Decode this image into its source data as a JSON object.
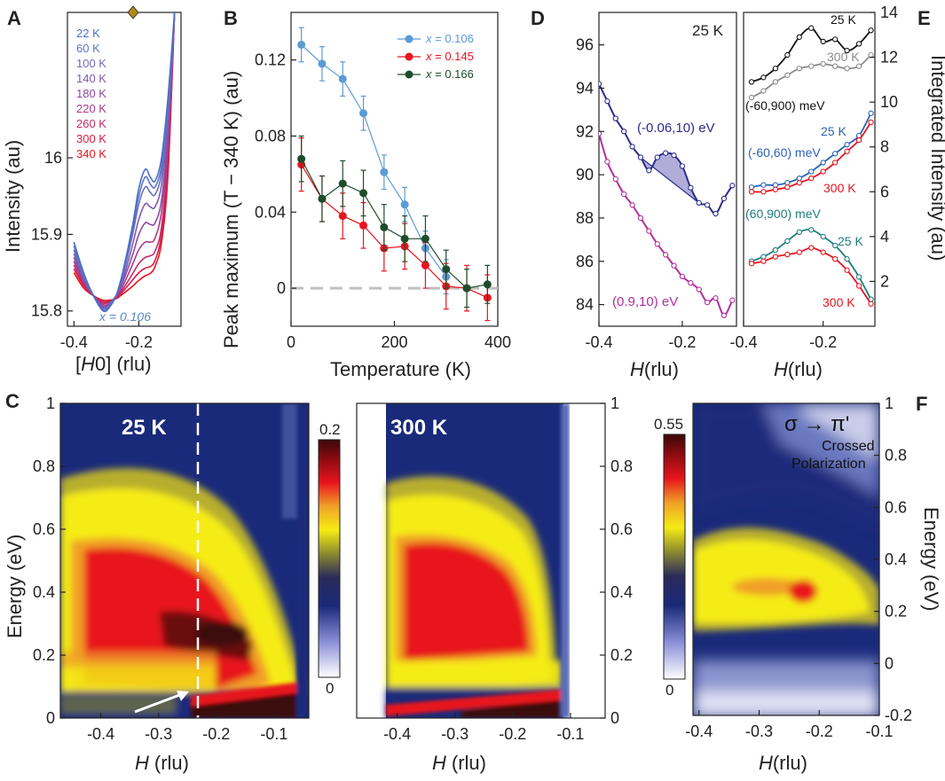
{
  "chart_data": [
    {
      "panel": "A",
      "type": "line",
      "xlabel": "[H0] (rlu)",
      "ylabel": "Intensity (au)",
      "xlim": [
        -0.42,
        -0.07
      ],
      "ylim": [
        15.78,
        16.19
      ],
      "xticks": [
        "-0.4",
        "-0.2"
      ],
      "yticks": [
        "15.8",
        "15.9",
        "16"
      ],
      "annotation": "x = 0.106",
      "series": [
        {
          "name": "22 K",
          "color": "#4a6fc8",
          "x": [
            -0.4,
            -0.37,
            -0.34,
            -0.31,
            -0.29,
            -0.27,
            -0.25,
            -0.22,
            -0.2,
            -0.18,
            -0.165,
            -0.15,
            -0.13,
            -0.11,
            -0.09
          ],
          "values": [
            15.89,
            15.85,
            15.82,
            15.8,
            15.805,
            15.82,
            15.85,
            15.91,
            15.96,
            15.985,
            15.975,
            15.97,
            16.0,
            16.08,
            16.19
          ]
        },
        {
          "name": "60 K",
          "color": "#5b74c4",
          "x": [
            -0.4,
            -0.37,
            -0.34,
            -0.31,
            -0.29,
            -0.27,
            -0.25,
            -0.22,
            -0.2,
            -0.18,
            -0.165,
            -0.15,
            -0.13,
            -0.11,
            -0.09
          ],
          "values": [
            15.885,
            15.847,
            15.82,
            15.8,
            15.806,
            15.82,
            15.848,
            15.905,
            15.95,
            15.975,
            15.966,
            15.962,
            15.99,
            16.07,
            16.19
          ]
        },
        {
          "name": "100 K",
          "color": "#6c6dbb",
          "x": [
            -0.4,
            -0.37,
            -0.34,
            -0.31,
            -0.29,
            -0.27,
            -0.25,
            -0.22,
            -0.2,
            -0.18,
            -0.165,
            -0.15,
            -0.13,
            -0.11,
            -0.09
          ],
          "values": [
            15.88,
            15.845,
            15.82,
            15.802,
            15.808,
            15.82,
            15.845,
            15.898,
            15.94,
            15.962,
            15.955,
            15.952,
            15.98,
            16.06,
            16.19
          ]
        },
        {
          "name": "140 K",
          "color": "#7d5ab0",
          "x": [
            -0.4,
            -0.37,
            -0.34,
            -0.31,
            -0.29,
            -0.27,
            -0.25,
            -0.22,
            -0.2,
            -0.18,
            -0.165,
            -0.15,
            -0.13,
            -0.11,
            -0.09
          ],
          "values": [
            15.875,
            15.843,
            15.82,
            15.804,
            15.81,
            15.82,
            15.84,
            15.885,
            15.92,
            15.94,
            15.936,
            15.936,
            15.965,
            16.05,
            16.19
          ]
        },
        {
          "name": "180 K",
          "color": "#8f4aa0",
          "x": [
            -0.4,
            -0.37,
            -0.34,
            -0.31,
            -0.29,
            -0.27,
            -0.25,
            -0.22,
            -0.2,
            -0.18,
            -0.165,
            -0.15,
            -0.13,
            -0.11,
            -0.09
          ],
          "values": [
            15.87,
            15.84,
            15.82,
            15.806,
            15.81,
            15.82,
            15.837,
            15.872,
            15.9,
            15.915,
            15.913,
            15.915,
            15.945,
            16.035,
            16.19
          ]
        },
        {
          "name": "220 K",
          "color": "#a63c8c",
          "x": [
            -0.4,
            -0.37,
            -0.34,
            -0.31,
            -0.29,
            -0.27,
            -0.25,
            -0.22,
            -0.2,
            -0.18,
            -0.165,
            -0.15,
            -0.13,
            -0.11,
            -0.09
          ],
          "values": [
            15.865,
            15.838,
            15.82,
            15.808,
            15.81,
            15.818,
            15.832,
            15.86,
            15.88,
            15.89,
            15.89,
            15.895,
            15.93,
            16.02,
            16.19
          ]
        },
        {
          "name": "260 K",
          "color": "#bf2c6c",
          "x": [
            -0.4,
            -0.37,
            -0.34,
            -0.31,
            -0.29,
            -0.27,
            -0.25,
            -0.22,
            -0.2,
            -0.18,
            -0.165,
            -0.15,
            -0.13,
            -0.11,
            -0.09
          ],
          "values": [
            15.86,
            15.835,
            15.82,
            15.81,
            15.812,
            15.818,
            15.828,
            15.848,
            15.862,
            15.87,
            15.872,
            15.878,
            15.91,
            16.005,
            16.19
          ]
        },
        {
          "name": "300 K",
          "color": "#d81c48",
          "x": [
            -0.4,
            -0.37,
            -0.34,
            -0.31,
            -0.29,
            -0.27,
            -0.25,
            -0.22,
            -0.2,
            -0.18,
            -0.165,
            -0.15,
            -0.13,
            -0.11,
            -0.09
          ],
          "values": [
            15.855,
            15.833,
            15.82,
            15.812,
            15.813,
            15.817,
            15.825,
            15.84,
            15.85,
            15.856,
            15.858,
            15.866,
            15.9,
            15.99,
            16.19
          ]
        },
        {
          "name": "340 K",
          "color": "#e8141e",
          "x": [
            -0.4,
            -0.37,
            -0.34,
            -0.31,
            -0.29,
            -0.27,
            -0.25,
            -0.22,
            -0.2,
            -0.18,
            -0.165,
            -0.15,
            -0.13,
            -0.11,
            -0.09
          ],
          "values": [
            15.85,
            15.83,
            15.82,
            15.814,
            15.814,
            15.816,
            15.822,
            15.832,
            15.84,
            15.846,
            15.849,
            15.858,
            15.89,
            15.98,
            16.19
          ]
        }
      ]
    },
    {
      "panel": "B",
      "type": "line",
      "xlabel": "Temperature (K)",
      "ylabel": "Peak maximum (T − 340 K) (au)",
      "xlim": [
        0,
        400
      ],
      "ylim": [
        -0.02,
        0.145
      ],
      "xticks": [
        "0",
        "200",
        "400"
      ],
      "yticks": [
        "0",
        "0.04",
        "0.08",
        "0.12"
      ],
      "series": [
        {
          "name": "x = 0.106",
          "color": "#5b9bd5",
          "x": [
            20,
            60,
            100,
            140,
            180,
            220,
            260,
            300
          ],
          "values": [
            0.128,
            0.118,
            0.11,
            0.092,
            0.061,
            0.044,
            0.021,
            0.006
          ],
          "errors": [
            0.009,
            0.009,
            0.009,
            0.009,
            0.009,
            0.009,
            0.009,
            0.009
          ]
        },
        {
          "name": "x = 0.145",
          "color": "#e8141e",
          "x": [
            20,
            60,
            100,
            140,
            180,
            220,
            260,
            300,
            340,
            380
          ],
          "values": [
            0.065,
            0.047,
            0.038,
            0.033,
            0.021,
            0.022,
            0.012,
            0.001,
            0.0,
            -0.005
          ],
          "errors": [
            0.014,
            0.012,
            0.012,
            0.012,
            0.012,
            0.012,
            0.012,
            0.012,
            0.012,
            0.012
          ]
        },
        {
          "name": "x = 0.166",
          "color": "#1e4d2b",
          "x": [
            20,
            60,
            100,
            140,
            180,
            220,
            260,
            300,
            340,
            380
          ],
          "values": [
            0.068,
            0.047,
            0.055,
            0.05,
            0.032,
            0.026,
            0.026,
            0.01,
            0.0,
            0.002
          ],
          "errors": [
            0.012,
            0.012,
            0.012,
            0.012,
            0.012,
            0.012,
            0.012,
            0.01,
            0.01,
            0.01
          ]
        }
      ],
      "reference_line": {
        "y": 0,
        "style": "dashed",
        "color": "#c0c0c0"
      }
    },
    {
      "panel": "D",
      "type": "scatter",
      "xlabel": "H (rlu)",
      "xlim": [
        -0.4,
        -0.07
      ],
      "ylim": [
        83,
        97.5
      ],
      "xticks": [
        "-0.4",
        "-0.2"
      ],
      "yticks": [
        "84",
        "86",
        "88",
        "90",
        "92",
        "94",
        "96"
      ],
      "annotation": "25 K",
      "series": [
        {
          "name": "(-0.06,10) eV",
          "color": "#2b2d8c",
          "x": [
            -0.4,
            -0.38,
            -0.36,
            -0.34,
            -0.32,
            -0.3,
            -0.28,
            -0.26,
            -0.24,
            -0.22,
            -0.2,
            -0.18,
            -0.16,
            -0.14,
            -0.12,
            -0.1,
            -0.08
          ],
          "values": [
            94.2,
            93.4,
            92.6,
            92.0,
            91.3,
            90.8,
            90.2,
            90.8,
            91.0,
            90.9,
            90.4,
            89.4,
            88.7,
            88.6,
            88.2,
            88.9,
            89.5
          ]
        },
        {
          "name": "(0.9,10) eV",
          "color": "#b0309c",
          "x": [
            -0.4,
            -0.38,
            -0.36,
            -0.34,
            -0.32,
            -0.3,
            -0.28,
            -0.26,
            -0.24,
            -0.22,
            -0.2,
            -0.18,
            -0.16,
            -0.14,
            -0.12,
            -0.1,
            -0.08
          ],
          "values": [
            91.9,
            90.6,
            89.8,
            89.1,
            88.6,
            88.0,
            87.4,
            86.8,
            86.3,
            85.8,
            85.3,
            85.0,
            84.7,
            84.1,
            84.3,
            83.5,
            84.2
          ]
        }
      ]
    },
    {
      "panel": "E",
      "type": "scatter",
      "xlabel": "H (rlu)",
      "ylabel": "Integrated Intensity (au)",
      "xlim": [
        -0.4,
        -0.07
      ],
      "ylim": [
        0,
        14
      ],
      "xticks": [
        "-0.4",
        "-0.2"
      ],
      "yticks": [
        "2",
        "4",
        "6",
        "8",
        "10",
        "12",
        "14"
      ],
      "series": [
        {
          "name": "25 K",
          "group": "(-60,900) meV",
          "color": "#111111",
          "x": [
            -0.38,
            -0.35,
            -0.32,
            -0.29,
            -0.26,
            -0.23,
            -0.2,
            -0.17,
            -0.14,
            -0.11,
            -0.08
          ],
          "values": [
            10.9,
            11.1,
            11.5,
            12.1,
            12.9,
            13.3,
            12.7,
            12.8,
            12.3,
            12.6,
            13.2
          ]
        },
        {
          "name": "300 K",
          "group": "(-60,900) meV",
          "color": "#8c8c8c",
          "x": [
            -0.38,
            -0.35,
            -0.32,
            -0.29,
            -0.26,
            -0.23,
            -0.2,
            -0.17,
            -0.14,
            -0.11,
            -0.08
          ],
          "values": [
            10.2,
            10.5,
            10.9,
            11.2,
            11.5,
            11.6,
            11.7,
            11.6,
            11.5,
            11.6,
            12.1
          ]
        },
        {
          "name": "25 K",
          "group": "(-60,60) meV",
          "color": "#2b62b8",
          "x": [
            -0.38,
            -0.35,
            -0.32,
            -0.29,
            -0.26,
            -0.23,
            -0.2,
            -0.17,
            -0.14,
            -0.11,
            -0.08
          ],
          "values": [
            6.2,
            6.3,
            6.3,
            6.4,
            6.6,
            6.9,
            7.3,
            7.7,
            8.1,
            8.5,
            9.5
          ]
        },
        {
          "name": "300 K",
          "group": "(-60,60) meV",
          "color": "#e8141e",
          "x": [
            -0.38,
            -0.35,
            -0.32,
            -0.29,
            -0.26,
            -0.23,
            -0.2,
            -0.17,
            -0.14,
            -0.11,
            -0.08
          ],
          "values": [
            6.0,
            6.0,
            6.1,
            6.2,
            6.4,
            6.6,
            6.9,
            7.3,
            7.8,
            8.3,
            9.1
          ]
        },
        {
          "name": "25 K",
          "group": "(60,900) meV",
          "color": "#1f7d7d",
          "x": [
            -0.38,
            -0.35,
            -0.32,
            -0.29,
            -0.26,
            -0.23,
            -0.2,
            -0.17,
            -0.14,
            -0.11,
            -0.08
          ],
          "values": [
            2.9,
            3.1,
            3.4,
            3.8,
            4.2,
            4.3,
            4.0,
            3.6,
            3.0,
            2.2,
            1.2
          ]
        },
        {
          "name": "300 K",
          "group": "(60,900) meV",
          "color": "#e8141e",
          "x": [
            -0.38,
            -0.35,
            -0.32,
            -0.29,
            -0.26,
            -0.23,
            -0.2,
            -0.17,
            -0.14,
            -0.11,
            -0.08
          ],
          "values": [
            2.8,
            2.9,
            3.1,
            3.2,
            3.3,
            3.5,
            3.3,
            3.0,
            2.5,
            1.8,
            1.0
          ]
        }
      ]
    },
    {
      "panel": "C",
      "type": "heatmap",
      "title": "25 K",
      "xlabel": "H (rlu)",
      "ylabel": "Energy (eV)",
      "xlim": [
        -0.47,
        -0.04
      ],
      "ylim": [
        0,
        1
      ],
      "xticks": [
        "-0.4",
        "-0.3",
        "-0.2",
        "-0.1"
      ],
      "yticks": [
        "0",
        "0.2",
        "0.4",
        "0.6",
        "0.8",
        "1"
      ],
      "colorbar": {
        "min": "0",
        "max": "0.2"
      },
      "marker_line_H": -0.235
    },
    {
      "panel": "C2",
      "type": "heatmap",
      "title": "300 K",
      "xlabel": "H (rlu)",
      "xlim": [
        -0.47,
        -0.04
      ],
      "ylim": [
        0,
        1
      ],
      "xticks": [
        "-0.4",
        "-0.3",
        "-0.2",
        "-0.1"
      ],
      "yticks": [
        "0",
        "0.2",
        "0.4",
        "0.6",
        "0.8",
        "1"
      ]
    },
    {
      "panel": "F",
      "type": "heatmap",
      "title": "σ → π'",
      "subtitle": "Crossed Polarization",
      "xlabel": "H (rlu)",
      "ylabel": "Energy (eV)",
      "xlim": [
        -0.41,
        -0.1
      ],
      "ylim": [
        -0.2,
        1
      ],
      "xticks": [
        "-0.4",
        "-0.3",
        "-0.2",
        "-0.1"
      ],
      "yticks": [
        "-0.2",
        "0",
        "0.2",
        "0.4",
        "0.6",
        "0.8",
        "1"
      ],
      "colorbar": {
        "min": "0",
        "max": "0.55"
      }
    }
  ],
  "labels": {
    "A": "A",
    "B": "B",
    "C": "C",
    "D": "D",
    "E": "E",
    "F": "F",
    "a_axis_left": "Intensity (au)",
    "a_axis_bottom_prefix": "[",
    "a_axis_bottom_H": "H",
    "a_axis_bottom_suffix": "0] (rlu)",
    "a_note": "x = 0.106",
    "b_ylabel": "Peak maximum (T − 340 K) (au)",
    "b_xlabel": "Temperature (K)",
    "d_title": "25 K",
    "d_series1": "(-0.06,10) eV",
    "d_series2": "(0.9,10) eV",
    "e_ylabel": "Integrated Intensity (au)",
    "e_g1": "(-60,900) meV",
    "e_g2": "(-60,60) meV",
    "e_g3": "(60,900) meV",
    "e_25": "25 K",
    "e_300": "300 K",
    "h_label": "H",
    "rlu": "(rlu)",
    "energy": "Energy (eV)",
    "c_title": "25 K",
    "c2_title": "300 K",
    "cb1_max": "0.2",
    "cb1_min": "0",
    "cb2_max": "0.55",
    "cb2_min": "0",
    "f_title": "σ → π'",
    "f_sub1": "Crossed",
    "f_sub2": "Polarization",
    "legend_b_prefix": "x",
    "legend_b_1": " = 0.106",
    "legend_b_2": " = 0.145",
    "legend_b_3": " = 0.166"
  },
  "colors": {
    "navy": "#1a2a7a",
    "yellow": "#f5ec14",
    "red": "#e8141e",
    "darkred": "#3a0808"
  }
}
